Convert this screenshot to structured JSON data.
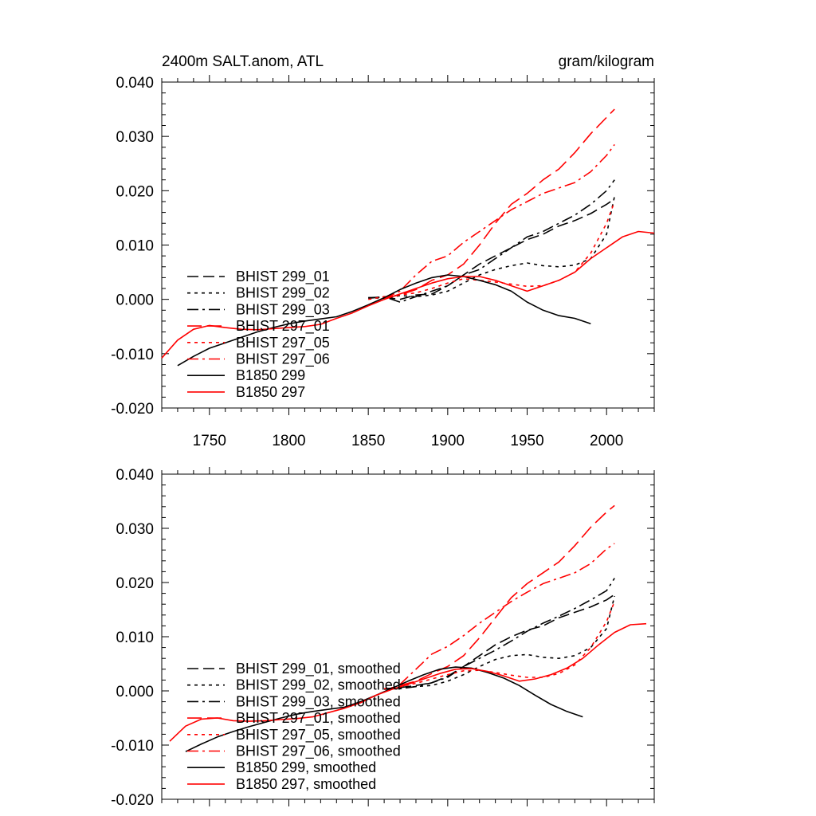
{
  "chart_data": [
    {
      "type": "line",
      "title_left": "2400m SALT.anom, ATL",
      "title_right": "gram/kilogram",
      "xlim": [
        1720,
        2030
      ],
      "ylim": [
        -0.02,
        0.04
      ],
      "xticks": [
        1750,
        1800,
        1850,
        1900,
        1950,
        2000
      ],
      "yticks": [
        -0.02,
        -0.01,
        0.0,
        0.01,
        0.02,
        0.03,
        0.04
      ],
      "ytick_labels": [
        "-0.020",
        "-0.010",
        "0.000",
        "0.010",
        "0.020",
        "0.030",
        "0.040"
      ],
      "show_xtick_labels": true,
      "grid": false,
      "legend_position": "lower-left",
      "series": [
        {
          "name": "BHIST 299_01",
          "color": "#000000",
          "dash": "dash",
          "x": [
            1850,
            1860,
            1870,
            1880,
            1890,
            1900,
            1910,
            1920,
            1930,
            1940,
            1950,
            1960,
            1970,
            1980,
            1990,
            2000,
            2005
          ],
          "y": [
            0.0003,
            0.0004,
            0.0,
            0.0008,
            0.001,
            0.0025,
            0.0045,
            0.0065,
            0.008,
            0.0095,
            0.011,
            0.012,
            0.0135,
            0.0145,
            0.0158,
            0.0175,
            0.0185
          ]
        },
        {
          "name": "BHIST 299_02",
          "color": "#000000",
          "dash": "dot",
          "x": [
            1850,
            1860,
            1870,
            1880,
            1890,
            1900,
            1910,
            1920,
            1930,
            1940,
            1950,
            1960,
            1970,
            1980,
            1990,
            2000,
            2005
          ],
          "y": [
            0.0003,
            0.0002,
            0.0007,
            0.0005,
            0.0008,
            0.0015,
            0.003,
            0.0045,
            0.0055,
            0.0062,
            0.0067,
            0.0062,
            0.006,
            0.0063,
            0.0075,
            0.012,
            0.019
          ]
        },
        {
          "name": "BHIST 299_03",
          "color": "#000000",
          "dash": "dashdot",
          "x": [
            1850,
            1860,
            1870,
            1880,
            1890,
            1900,
            1910,
            1920,
            1930,
            1940,
            1950,
            1960,
            1970,
            1980,
            1990,
            2000,
            2005
          ],
          "y": [
            0.0002,
            0.0005,
            -0.0005,
            0.0005,
            0.0015,
            0.0025,
            0.0045,
            0.0055,
            0.0075,
            0.0095,
            0.0115,
            0.0125,
            0.014,
            0.0155,
            0.0175,
            0.02,
            0.022
          ]
        },
        {
          "name": "BHIST 297_01",
          "color": "#ff0000",
          "dash": "longdash",
          "x": [
            1860,
            1870,
            1880,
            1890,
            1900,
            1910,
            1920,
            1930,
            1940,
            1950,
            1960,
            1970,
            1980,
            1990,
            2000,
            2005
          ],
          "y": [
            0.0003,
            0.0008,
            0.0018,
            0.0035,
            0.0045,
            0.0065,
            0.01,
            0.014,
            0.0175,
            0.0195,
            0.022,
            0.024,
            0.027,
            0.0305,
            0.0335,
            0.035
          ]
        },
        {
          "name": "BHIST 297_05",
          "color": "#ff0000",
          "dash": "dot",
          "x": [
            1850,
            1860,
            1870,
            1880,
            1890,
            1900,
            1910,
            1920,
            1930,
            1940,
            1950,
            1960,
            1970,
            1980,
            1990,
            2000,
            2005
          ],
          "y": [
            0.0,
            0.0005,
            0.0008,
            0.0012,
            0.002,
            0.003,
            0.0038,
            0.0035,
            0.0032,
            0.0028,
            0.0024,
            0.0025,
            0.0035,
            0.005,
            0.0085,
            0.014,
            0.018
          ]
        },
        {
          "name": "BHIST 297_06",
          "color": "#ff0000",
          "dash": "dashdot",
          "x": [
            1860,
            1870,
            1880,
            1890,
            1900,
            1910,
            1920,
            1930,
            1940,
            1950,
            1960,
            1970,
            1980,
            1990,
            2000,
            2005
          ],
          "y": [
            0.0002,
            0.0015,
            0.0045,
            0.007,
            0.008,
            0.0105,
            0.0125,
            0.0145,
            0.0165,
            0.018,
            0.0195,
            0.0205,
            0.0215,
            0.0235,
            0.0265,
            0.0285
          ]
        },
        {
          "name": "B1850 299",
          "color": "#000000",
          "dash": "solid",
          "x": [
            1730,
            1740,
            1750,
            1760,
            1770,
            1780,
            1790,
            1800,
            1810,
            1820,
            1830,
            1840,
            1850,
            1860,
            1870,
            1880,
            1890,
            1900,
            1910,
            1920,
            1930,
            1940,
            1950,
            1960,
            1970,
            1980,
            1990
          ],
          "y": [
            -0.0122,
            -0.0105,
            -0.009,
            -0.008,
            -0.007,
            -0.006,
            -0.0052,
            -0.0045,
            -0.004,
            -0.0036,
            -0.0032,
            -0.0022,
            -0.001,
            0.0003,
            0.0018,
            0.003,
            0.004,
            0.0045,
            0.0042,
            0.0035,
            0.0027,
            0.0015,
            -0.0005,
            -0.002,
            -0.003,
            -0.0035,
            -0.0045
          ]
        },
        {
          "name": "B1850 297",
          "color": "#ff0000",
          "dash": "solid",
          "x": [
            1720,
            1730,
            1740,
            1750,
            1760,
            1770,
            1780,
            1790,
            1800,
            1810,
            1820,
            1830,
            1840,
            1850,
            1860,
            1870,
            1880,
            1890,
            1900,
            1910,
            1920,
            1930,
            1940,
            1950,
            1960,
            1970,
            1980,
            1990,
            2000,
            2010,
            2020,
            2030
          ],
          "y": [
            -0.0108,
            -0.0075,
            -0.0055,
            -0.0048,
            -0.0052,
            -0.0055,
            -0.0056,
            -0.0054,
            -0.0052,
            -0.005,
            -0.0046,
            -0.0035,
            -0.0025,
            -0.0012,
            0.0,
            0.001,
            0.002,
            0.003,
            0.0038,
            0.0042,
            0.0042,
            0.0035,
            0.0025,
            0.0015,
            0.0025,
            0.0035,
            0.005,
            0.0075,
            0.0095,
            0.0115,
            0.0125,
            0.0122
          ]
        }
      ]
    },
    {
      "type": "line",
      "xlim": [
        1720,
        2030
      ],
      "ylim": [
        -0.02,
        0.04
      ],
      "xticks": [
        1750,
        1800,
        1850,
        1900,
        1950,
        2000
      ],
      "yticks": [
        -0.02,
        -0.01,
        0.0,
        0.01,
        0.02,
        0.03,
        0.04
      ],
      "ytick_labels": [
        "-0.020",
        "-0.010",
        "0.000",
        "0.010",
        "0.020",
        "0.030",
        "0.040"
      ],
      "show_xtick_labels": false,
      "grid": false,
      "legend_position": "lower-left",
      "series": [
        {
          "name": "BHIST 299_01, smoothed",
          "color": "#000000",
          "dash": "dash",
          "x": [
            1860,
            1870,
            1880,
            1890,
            1900,
            1910,
            1920,
            1930,
            1940,
            1950,
            1960,
            1970,
            1980,
            1990,
            2000,
            2005
          ],
          "y": [
            0.0004,
            0.0006,
            0.001,
            0.0015,
            0.0027,
            0.0045,
            0.0065,
            0.0085,
            0.01,
            0.0112,
            0.012,
            0.0135,
            0.0145,
            0.0155,
            0.0168,
            0.0178
          ]
        },
        {
          "name": "BHIST 299_02, smoothed",
          "color": "#000000",
          "dash": "dot",
          "x": [
            1860,
            1870,
            1880,
            1890,
            1900,
            1910,
            1920,
            1930,
            1940,
            1950,
            1960,
            1970,
            1980,
            1990,
            2000,
            2005
          ],
          "y": [
            0.0003,
            0.0005,
            0.0008,
            0.001,
            0.0018,
            0.003,
            0.0045,
            0.0058,
            0.0065,
            0.0067,
            0.0062,
            0.006,
            0.0065,
            0.008,
            0.0115,
            0.0175
          ]
        },
        {
          "name": "BHIST 299_03, smoothed",
          "color": "#000000",
          "dash": "dashdot",
          "x": [
            1860,
            1870,
            1880,
            1890,
            1900,
            1910,
            1920,
            1930,
            1940,
            1950,
            1960,
            1970,
            1980,
            1990,
            2000,
            2005
          ],
          "y": [
            0.0004,
            0.0004,
            0.0008,
            0.0015,
            0.0025,
            0.0045,
            0.006,
            0.0075,
            0.0092,
            0.011,
            0.0125,
            0.0138,
            0.0152,
            0.0168,
            0.0185,
            0.0208
          ]
        },
        {
          "name": "BHIST 297_01, smoothed",
          "color": "#ff0000",
          "dash": "longdash",
          "x": [
            1870,
            1880,
            1890,
            1900,
            1910,
            1920,
            1930,
            1940,
            1950,
            1960,
            1970,
            1980,
            1990,
            2000,
            2005
          ],
          "y": [
            0.001,
            0.0018,
            0.0032,
            0.0045,
            0.0065,
            0.0098,
            0.0135,
            0.0172,
            0.0198,
            0.0218,
            0.0238,
            0.0268,
            0.0302,
            0.033,
            0.0342
          ]
        },
        {
          "name": "BHIST 297_05, smoothed",
          "color": "#ff0000",
          "dash": "dot",
          "x": [
            1860,
            1870,
            1880,
            1890,
            1900,
            1910,
            1920,
            1930,
            1940,
            1950,
            1960,
            1970,
            1980,
            1990,
            2000,
            2005
          ],
          "y": [
            0.0004,
            0.0008,
            0.0014,
            0.0022,
            0.003,
            0.0037,
            0.0038,
            0.0034,
            0.0029,
            0.0025,
            0.0025,
            0.0032,
            0.0048,
            0.008,
            0.0128,
            0.0165
          ]
        },
        {
          "name": "BHIST 297_06, smoothed",
          "color": "#ff0000",
          "dash": "dashdot",
          "x": [
            1870,
            1880,
            1890,
            1900,
            1910,
            1920,
            1930,
            1940,
            1950,
            1960,
            1970,
            1980,
            1990,
            2000,
            2005
          ],
          "y": [
            0.0012,
            0.004,
            0.0068,
            0.0082,
            0.0102,
            0.0125,
            0.0145,
            0.0165,
            0.0182,
            0.0198,
            0.0208,
            0.0218,
            0.0235,
            0.0262,
            0.0272
          ]
        },
        {
          "name": "B1850 299, smoothed",
          "color": "#000000",
          "dash": "solid",
          "x": [
            1735,
            1745,
            1755,
            1765,
            1775,
            1785,
            1795,
            1805,
            1815,
            1825,
            1835,
            1845,
            1855,
            1865,
            1875,
            1885,
            1895,
            1905,
            1915,
            1925,
            1935,
            1945,
            1955,
            1965,
            1975,
            1985
          ],
          "y": [
            -0.0112,
            -0.0098,
            -0.0085,
            -0.0075,
            -0.0066,
            -0.0058,
            -0.005,
            -0.0043,
            -0.0038,
            -0.0034,
            -0.003,
            -0.002,
            -0.0008,
            0.0005,
            0.0018,
            0.003,
            0.004,
            0.0044,
            0.0042,
            0.0034,
            0.0024,
            0.001,
            -0.0008,
            -0.0025,
            -0.0038,
            -0.0048
          ]
        },
        {
          "name": "B1850 297, smoothed",
          "color": "#ff0000",
          "dash": "solid",
          "x": [
            1725,
            1735,
            1745,
            1755,
            1765,
            1775,
            1785,
            1795,
            1805,
            1815,
            1825,
            1835,
            1845,
            1855,
            1865,
            1875,
            1885,
            1895,
            1905,
            1915,
            1925,
            1935,
            1945,
            1955,
            1965,
            1975,
            1985,
            1995,
            2005,
            2015,
            2025
          ],
          "y": [
            -0.0093,
            -0.0065,
            -0.0052,
            -0.005,
            -0.0055,
            -0.0056,
            -0.0055,
            -0.0053,
            -0.0051,
            -0.0048,
            -0.004,
            -0.0032,
            -0.0022,
            -0.0008,
            0.0003,
            0.0012,
            0.0022,
            0.0032,
            0.004,
            0.0041,
            0.0036,
            0.0028,
            0.0018,
            0.0022,
            0.003,
            0.0042,
            0.006,
            0.0085,
            0.0108,
            0.0122,
            0.0124
          ]
        }
      ]
    }
  ]
}
